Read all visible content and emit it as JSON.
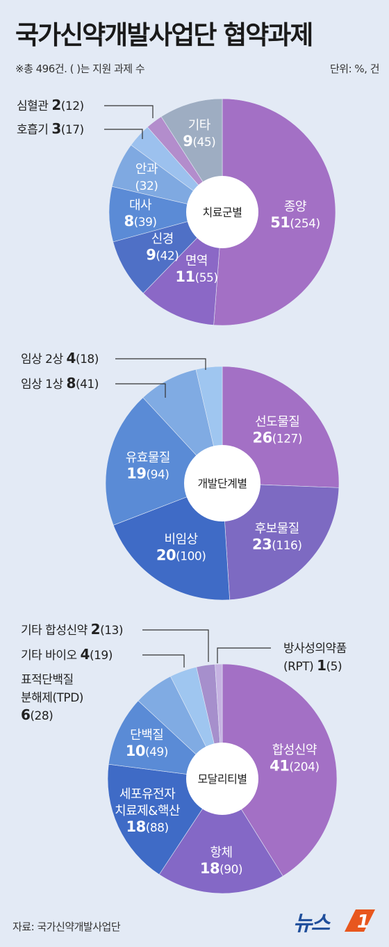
{
  "header": {
    "title": "국가신약개발사업단 협약과제",
    "note": "※총 496건. ( )는 지원 과제 수",
    "unit": "단위: %, 건"
  },
  "footer": {
    "source": "자료: 국가신약개발사업단",
    "logo_text": "뉴스",
    "logo_mark": "1"
  },
  "chart_data": [
    {
      "type": "pie",
      "title": "치료군별",
      "center_label": "치료군별",
      "slices": [
        {
          "label": "종양",
          "value": 51,
          "count": "(254)",
          "color": "#a370c5"
        },
        {
          "label": "면역",
          "value": 11,
          "count": "(55)",
          "color": "#8b68c6"
        },
        {
          "label": "신경",
          "value": 9,
          "count": "(42)",
          "color": "#4f70c6"
        },
        {
          "label": "대사",
          "value": 8,
          "count": "(39)",
          "color": "#5b8bd6"
        },
        {
          "label": "안과",
          "value": null,
          "count": "(32)",
          "color": "#7fa9e1"
        },
        {
          "label": "호흡기",
          "value": 3,
          "count": "(17)",
          "color": "#9cc1ee"
        },
        {
          "label": "심혈관",
          "value": 2,
          "count": "(12)",
          "color": "#b38dcc"
        },
        {
          "label": "기타",
          "value": 9,
          "count": "(45)",
          "color": "#9eadc2"
        }
      ]
    },
    {
      "type": "pie",
      "title": "개발단계별",
      "center_label": "개발단계별",
      "slices": [
        {
          "label": "선도물질",
          "value": 26,
          "count": "(127)",
          "color": "#a370c5"
        },
        {
          "label": "후보물질",
          "value": 23,
          "count": "(116)",
          "color": "#7d6ac2"
        },
        {
          "label": "비임상",
          "value": 20,
          "count": "(100)",
          "color": "#3f6bc6"
        },
        {
          "label": "유효물질",
          "value": 19,
          "count": "(94)",
          "color": "#5a8bd6"
        },
        {
          "label": "임상 1상",
          "value": 8,
          "count": "(41)",
          "color": "#80abe3"
        },
        {
          "label": "임상 2상",
          "value": 4,
          "count": "(18)",
          "color": "#9fc6f0"
        }
      ]
    },
    {
      "type": "pie",
      "title": "모달리티별",
      "center_label": "모달리티별",
      "slices": [
        {
          "label": "합성신약",
          "value": 41,
          "count": "(204)",
          "color": "#a370c5"
        },
        {
          "label": "항체",
          "value": 18,
          "count": "(90)",
          "color": "#8468c6"
        },
        {
          "label": "세포유전자 치료제&핵산",
          "value": 18,
          "count": "(88)",
          "color": "#3f6bc6"
        },
        {
          "label": "단백질",
          "value": 10,
          "count": "(49)",
          "color": "#5a8bd6"
        },
        {
          "label": "표적단백질 분해제(TPD)",
          "value": 6,
          "count": "(28)",
          "color": "#80abe3"
        },
        {
          "label": "기타 바이오",
          "value": 4,
          "count": "(19)",
          "color": "#9fc6f0"
        },
        {
          "label": "기타 합성신약",
          "value": 2,
          "count": "(13)",
          "color": "#a68fcc"
        },
        {
          "label": "방사성의약품 (RPT)",
          "value": 1,
          "count": "(5)",
          "color": "#c6b3e2"
        }
      ]
    }
  ]
}
